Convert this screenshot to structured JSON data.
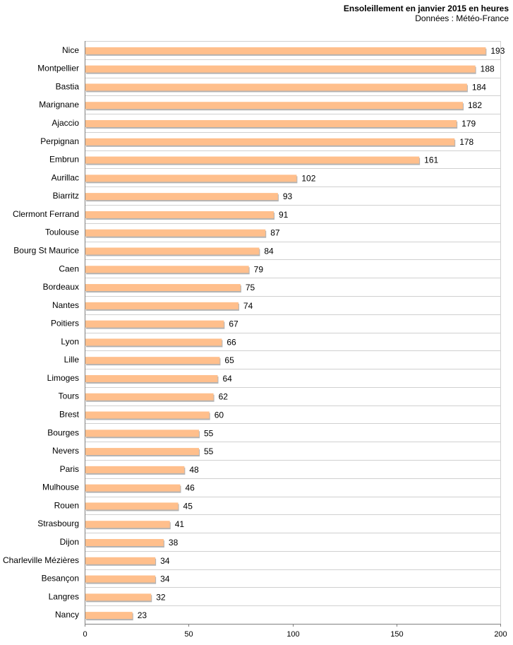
{
  "chart_data": {
    "type": "bar",
    "orientation": "horizontal",
    "title": "Ensoleillement  en janvier 2015 en heures",
    "subtitle": "Données : Météo-France",
    "categories": [
      "Nice",
      "Montpellier",
      "Bastia",
      "Marignane",
      "Ajaccio",
      "Perpignan",
      "Embrun",
      "Aurillac",
      "Biarritz",
      "Clermont Ferrand",
      "Toulouse",
      "Bourg St Maurice",
      "Caen",
      "Bordeaux",
      "Nantes",
      "Poitiers",
      "Lyon",
      "Lille",
      "Limoges",
      "Tours",
      "Brest",
      "Bourges",
      "Nevers",
      "Paris",
      "Mulhouse",
      "Rouen",
      "Strasbourg",
      "Dijon",
      "Charleville Mézières",
      "Besançon",
      "Langres",
      "Nancy"
    ],
    "values": [
      193,
      188,
      184,
      182,
      179,
      178,
      161,
      102,
      93,
      91,
      87,
      84,
      79,
      75,
      74,
      67,
      66,
      65,
      64,
      62,
      60,
      55,
      55,
      48,
      46,
      45,
      41,
      38,
      34,
      34,
      32,
      23
    ],
    "xlim": [
      0,
      200
    ],
    "xticks": [
      0,
      50,
      100,
      150,
      200
    ],
    "xlabel": "",
    "ylabel": "",
    "grid": true,
    "bar_color": "#FFBF8C",
    "shadow_color": "#B3B3B3"
  }
}
